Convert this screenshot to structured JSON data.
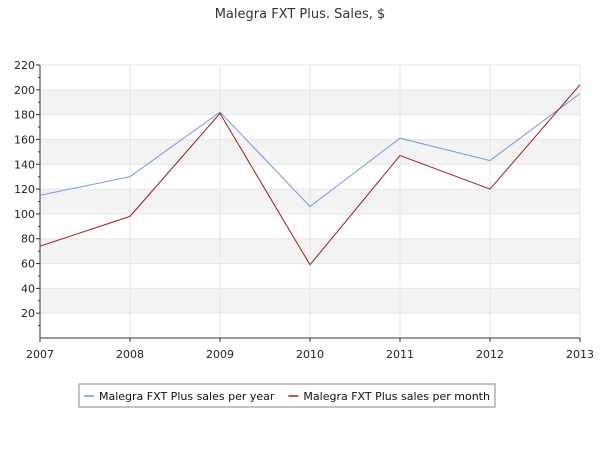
{
  "chart_data": {
    "type": "line",
    "title": "Malegra FXT Plus. Sales, $",
    "xlabel": "",
    "ylabel": "",
    "x": [
      "2007",
      "2008",
      "2009",
      "2010",
      "2011",
      "2012",
      "2013"
    ],
    "xlim": [
      2007,
      2013
    ],
    "ylim": [
      0,
      220
    ],
    "yticks": [
      20,
      40,
      60,
      80,
      100,
      120,
      140,
      160,
      180,
      200,
      220
    ],
    "grid": true,
    "legend_position": "bottom",
    "series": [
      {
        "name": "Malegra FXT Plus sales per year",
        "color": "#6f9ae0",
        "values": [
          115,
          130,
          182,
          106,
          161,
          143,
          197
        ]
      },
      {
        "name": "Malegra FXT Plus sales per month",
        "color": "#a11a1a",
        "values": [
          74,
          98,
          181,
          59,
          147,
          120,
          204
        ]
      }
    ]
  }
}
